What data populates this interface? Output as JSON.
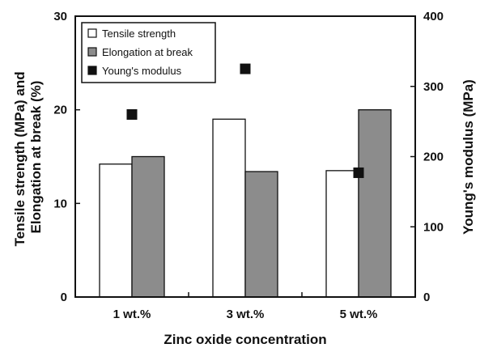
{
  "chart_data": {
    "type": "bar",
    "categories": [
      "1 wt.%",
      "3 wt.%",
      "5 wt.%"
    ],
    "series": [
      {
        "name": "Tensile strength",
        "axis": "left",
        "kind": "bar",
        "fill": "#ffffff",
        "values": [
          14.2,
          19.0,
          13.5
        ]
      },
      {
        "name": "Elongation at break",
        "axis": "left",
        "kind": "bar",
        "fill": "#8c8c8c",
        "values": [
          15.0,
          13.4,
          20.0
        ]
      },
      {
        "name": "Young's modulus",
        "axis": "right",
        "kind": "marker",
        "fill": "#111111",
        "values": [
          260,
          325,
          177
        ]
      }
    ],
    "xlabel": "Zinc oxide concentration",
    "ylabel_left": [
      "Tensile strength (MPa) and",
      "Elongation at break (%)"
    ],
    "ylabel_right": "Young's modulus (MPa)",
    "ylim_left": [
      0,
      30
    ],
    "ylim_right": [
      0,
      400
    ],
    "yticks_left": [
      0,
      10,
      20,
      30
    ],
    "yticks_right": [
      0,
      100,
      200,
      300,
      400
    ],
    "grid": false,
    "legend_position": "top-left"
  }
}
